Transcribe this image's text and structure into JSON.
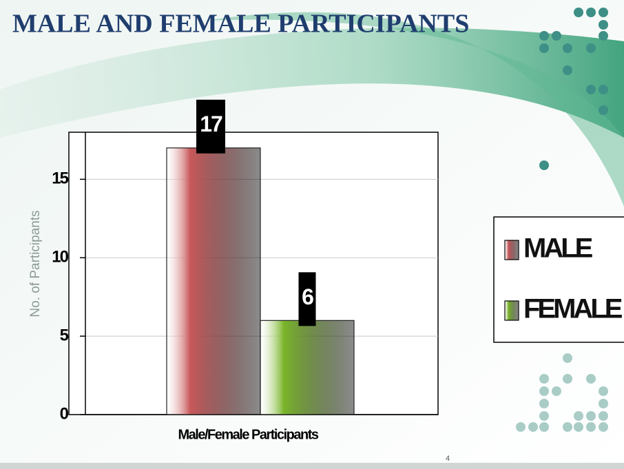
{
  "chart_data": {
    "type": "bar",
    "title": "MALE AND FEMALE PARTICIPANTS",
    "y_label": "No. of Participants",
    "x_label": "Male/Female Participants",
    "categories": [
      "Male/Female Participants"
    ],
    "series": [
      {
        "name": "MALE",
        "color": "#c9585a",
        "values": [
          17
        ]
      },
      {
        "name": "FEMALE",
        "color": "#7ab52a",
        "values": [
          6
        ]
      }
    ],
    "ylim": [
      0,
      18
    ],
    "yticks": [
      0,
      5,
      10,
      15
    ],
    "grid": true,
    "legend": "right"
  },
  "page_number": "4"
}
